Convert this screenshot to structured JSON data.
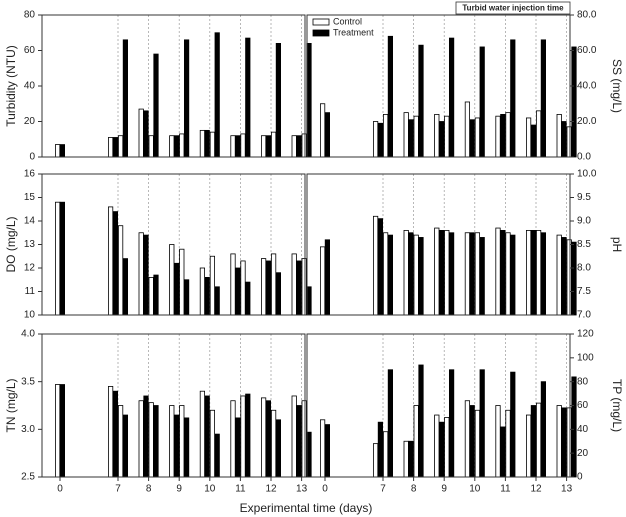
{
  "chart_data": [
    {
      "type": "bar",
      "ylabel": "Turbidity (NTU)",
      "axis_side": "left",
      "ylim": [
        0,
        80
      ],
      "yticks": [
        0,
        20,
        40,
        60,
        80
      ],
      "series": [
        {
          "color": "#ffffff",
          "values": [
            7,
            11,
            12,
            27,
            12,
            12,
            13,
            15,
            14,
            12,
            13,
            12,
            14,
            12,
            13
          ]
        },
        {
          "color": "#000000",
          "values": [
            7,
            11,
            66,
            26,
            58,
            12,
            66,
            15,
            70,
            12,
            67,
            12,
            64,
            12,
            64
          ]
        }
      ]
    },
    {
      "type": "bar",
      "ylabel": "SS (mg/L)",
      "axis_side": "right",
      "ylim": [
        0,
        80
      ],
      "yticks": [
        {
          "value": 0,
          "label": "0.0"
        },
        {
          "value": 20,
          "label": "20.0"
        },
        {
          "value": 40,
          "label": "40.0"
        },
        {
          "value": 60,
          "label": "60.0"
        },
        {
          "value": 80,
          "label": "80.0"
        }
      ],
      "annotation": "Turbid water injection time",
      "legend": "upper left",
      "series": [
        {
          "name": "Control",
          "color": "#ffffff",
          "values": [
            30,
            20,
            24,
            25,
            23,
            24,
            23,
            31,
            22,
            23,
            25,
            22,
            26,
            24,
            17
          ]
        },
        {
          "name": "Treatment",
          "color": "#000000",
          "values": [
            25,
            19,
            68,
            21,
            63,
            20,
            67,
            21,
            62,
            24,
            66,
            18,
            66,
            20,
            62
          ]
        }
      ]
    },
    {
      "type": "bar",
      "ylabel": "DO (mg/L)",
      "axis_side": "left",
      "ylim": [
        10,
        16
      ],
      "yticks": [
        10,
        11,
        12,
        13,
        14,
        15,
        16
      ],
      "series": [
        {
          "color": "#ffffff",
          "values": [
            14.8,
            14.6,
            13.8,
            13.5,
            11.6,
            13.0,
            12.8,
            12.0,
            12.5,
            12.6,
            12.3,
            12.4,
            12.6,
            12.6,
            12.4
          ]
        },
        {
          "color": "#000000",
          "values": [
            14.8,
            14.4,
            12.4,
            13.4,
            11.7,
            12.2,
            11.5,
            11.6,
            11.2,
            12.0,
            11.4,
            12.3,
            11.8,
            12.3,
            11.2
          ]
        }
      ]
    },
    {
      "type": "bar",
      "ylabel": "pH",
      "axis_side": "right",
      "ylim": [
        7,
        10
      ],
      "yticks": [
        {
          "value": 7,
          "label": "7.0"
        },
        7.5,
        {
          "value": 8,
          "label": "8.0"
        },
        8.5,
        {
          "value": 9,
          "label": "9.0"
        },
        9.5,
        {
          "value": 10,
          "label": "10.0"
        }
      ],
      "series": [
        {
          "color": "#ffffff",
          "values": [
            8.45,
            9.1,
            8.75,
            8.8,
            8.7,
            8.85,
            8.8,
            8.75,
            8.75,
            8.85,
            8.75,
            8.8,
            8.8,
            8.7,
            8.6
          ]
        },
        {
          "color": "#000000",
          "values": [
            8.6,
            9.05,
            8.7,
            8.75,
            8.65,
            8.8,
            8.75,
            8.75,
            8.65,
            8.8,
            8.7,
            8.8,
            8.75,
            8.65,
            8.55
          ]
        }
      ]
    },
    {
      "type": "bar",
      "ylabel": "TN (mg/L)",
      "axis_side": "left",
      "ylim": [
        2.5,
        4
      ],
      "yticks": [
        2.5,
        {
          "value": 3,
          "label": "3.0"
        },
        3.5,
        {
          "value": 4,
          "label": "4.0"
        }
      ],
      "xlabel": "Experimental time (days)",
      "categories": [
        "0",
        "7",
        null,
        "8",
        null,
        "9",
        null,
        "10",
        null,
        "11",
        null,
        "12",
        null,
        "13",
        null
      ],
      "series": [
        {
          "color": "#ffffff",
          "values": [
            3.47,
            3.45,
            3.25,
            3.3,
            3.28,
            3.25,
            3.25,
            3.4,
            3.2,
            3.3,
            3.35,
            3.33,
            3.2,
            3.35,
            3.3
          ]
        },
        {
          "color": "#000000",
          "values": [
            3.47,
            3.4,
            3.15,
            3.35,
            3.25,
            3.15,
            3.12,
            3.35,
            2.95,
            3.12,
            3.37,
            3.3,
            3.1,
            3.25,
            2.97
          ]
        }
      ]
    },
    {
      "type": "bar",
      "ylabel": "TP (mg/L)",
      "axis_side": "right",
      "ylim": [
        0,
        120
      ],
      "yticks": [
        0,
        20,
        40,
        60,
        80,
        100,
        120
      ],
      "categories": [
        "0",
        "7",
        null,
        "8",
        null,
        "9",
        null,
        "10",
        null,
        "11",
        null,
        "12",
        null,
        "13",
        null
      ],
      "series": [
        {
          "color": "#ffffff",
          "values": [
            48,
            28,
            38,
            30,
            60,
            52,
            50,
            64,
            56,
            60,
            56,
            52,
            62,
            60,
            58
          ]
        },
        {
          "color": "#000000",
          "values": [
            44,
            46,
            90,
            30,
            94,
            46,
            90,
            60,
            90,
            42,
            88,
            60,
            80,
            58,
            84
          ]
        }
      ]
    }
  ]
}
